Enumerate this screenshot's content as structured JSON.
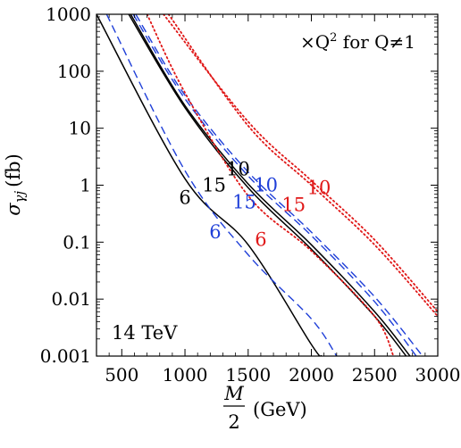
{
  "chart_data": {
    "type": "line",
    "xlabel_num": "M",
    "xlabel_den": "2",
    "xlabel_unit": "(GeV)",
    "ylabel_sym": "σ",
    "ylabel_sub": "γj",
    "ylabel_unit": "(fb)",
    "xlim": [
      300,
      3000
    ],
    "ylim": [
      0.001,
      1000
    ],
    "ylog": true,
    "x_ticks": [
      500,
      1000,
      1500,
      2000,
      2500,
      3000
    ],
    "x_tick_labels": [
      "500",
      "1000",
      "1500",
      "2000",
      "2500",
      "3000"
    ],
    "y_ticks": [
      0.001,
      0.01,
      0.1,
      1,
      10,
      100,
      1000
    ],
    "y_tick_labels": [
      "0.001",
      "0.01",
      "0.1",
      "1",
      "10",
      "100",
      "1000"
    ],
    "annotation_energy": "14 TeV",
    "annotation_charge_prefix": "×Q",
    "annotation_charge_power": "2",
    "annotation_charge_suffix": " for Q≠1",
    "colors": {
      "black": "#000000",
      "blue": "#1f3fd8",
      "red": "#e01818"
    },
    "series": [
      {
        "label": "6",
        "color": "black",
        "style": "solid",
        "width": 1.5,
        "points": [
          [
            300,
            1000
          ],
          [
            1000,
            1.3
          ],
          [
            1500,
            0.09
          ],
          [
            2000,
            0.0016
          ],
          [
            2080,
            0.001
          ]
        ],
        "label_pos": [
          1000,
          0.6
        ]
      },
      {
        "label": "10",
        "color": "black",
        "style": "solid",
        "width": 1.5,
        "points": [
          [
            570,
            1000
          ],
          [
            1000,
            25
          ],
          [
            1500,
            1.05
          ],
          [
            2000,
            0.09
          ],
          [
            2500,
            0.006
          ],
          [
            2780,
            0.001
          ]
        ],
        "label_pos": [
          1420,
          1.9
        ]
      },
      {
        "label": "15",
        "color": "black",
        "style": "solid",
        "width": 1.5,
        "points": [
          [
            555,
            1000
          ],
          [
            1000,
            23
          ],
          [
            1500,
            0.9
          ],
          [
            2000,
            0.075
          ],
          [
            2500,
            0.005
          ],
          [
            2750,
            0.001
          ]
        ],
        "label_pos": [
          1230,
          1.0
        ]
      },
      {
        "label": "6",
        "color": "blue",
        "style": "dashed",
        "width": 1.4,
        "points": [
          [
            380,
            1000
          ],
          [
            1000,
            1.8
          ],
          [
            1500,
            0.06
          ],
          [
            2000,
            0.0045
          ],
          [
            2200,
            0.001
          ]
        ],
        "label_pos": [
          1240,
          0.15
        ]
      },
      {
        "label": "10",
        "color": "blue",
        "style": "dashed",
        "width": 1.4,
        "points": [
          [
            610,
            1000
          ],
          [
            1000,
            38
          ],
          [
            1500,
            1.7
          ],
          [
            2000,
            0.15
          ],
          [
            2500,
            0.011
          ],
          [
            2880,
            0.001
          ]
        ],
        "label_pos": [
          1640,
          1.0
        ]
      },
      {
        "label": "15",
        "color": "blue",
        "style": "dashed",
        "width": 1.4,
        "points": [
          [
            590,
            1000
          ],
          [
            1000,
            33
          ],
          [
            1500,
            1.45
          ],
          [
            2000,
            0.13
          ],
          [
            2500,
            0.009
          ],
          [
            2830,
            0.001
          ]
        ],
        "label_pos": [
          1470,
          0.5
        ]
      },
      {
        "label": "6",
        "color": "red",
        "style": "dotted",
        "width": 1.8,
        "points": [
          [
            700,
            1000
          ],
          [
            1000,
            42
          ],
          [
            1500,
            0.65
          ],
          [
            2000,
            0.07
          ],
          [
            2500,
            0.005
          ],
          [
            2650,
            0.001
          ]
        ],
        "label_pos": [
          1600,
          0.11
        ]
      },
      {
        "label": "10",
        "color": "red",
        "style": "dotted",
        "width": 1.8,
        "points": [
          [
            830,
            1000
          ],
          [
            1500,
            13
          ],
          [
            2000,
            1.2
          ],
          [
            2500,
            0.11
          ],
          [
            3000,
            0.006
          ]
        ],
        "label_pos": [
          2060,
          0.9
        ]
      },
      {
        "label": "15",
        "color": "red",
        "style": "dotted",
        "width": 1.8,
        "points": [
          [
            870,
            1000
          ],
          [
            1500,
            11
          ],
          [
            2000,
            1.0
          ],
          [
            2500,
            0.09
          ],
          [
            3000,
            0.005
          ]
        ],
        "label_pos": [
          1860,
          0.45
        ]
      }
    ]
  }
}
